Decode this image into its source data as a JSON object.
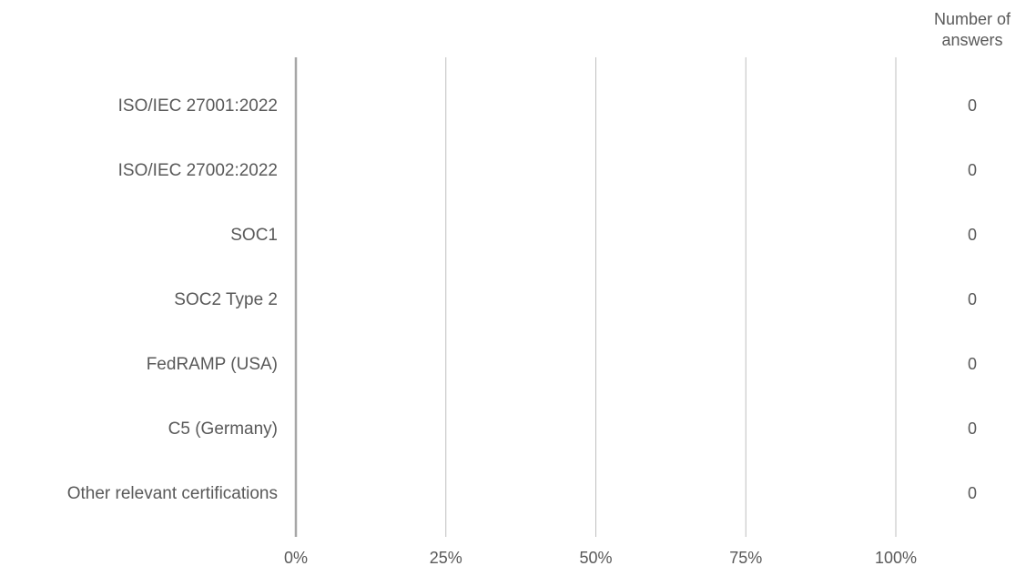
{
  "chart_data": {
    "type": "bar",
    "orientation": "horizontal",
    "categories": [
      "ISO/IEC 27001:2022",
      "ISO/IEC 27002:2022",
      "SOC1",
      "SOC2 Type 2",
      "FedRAMP (USA)",
      "C5 (Germany)",
      "Other relevant certifications"
    ],
    "series": [
      {
        "values": [
          0,
          0,
          0,
          0,
          0,
          0,
          0
        ]
      }
    ],
    "x_ticks": [
      "0%",
      "25%",
      "50%",
      "75%",
      "100%"
    ],
    "xlim": [
      0,
      100
    ],
    "grid": true,
    "legend": false,
    "count_column": {
      "header_line1": "Number of",
      "header_line2": "answers",
      "values": [
        "0",
        "0",
        "0",
        "0",
        "0",
        "0",
        "0"
      ]
    },
    "colors": {
      "text": "#595959",
      "gridline": "#bfbfbf",
      "axis": "#a6a6a6"
    }
  }
}
